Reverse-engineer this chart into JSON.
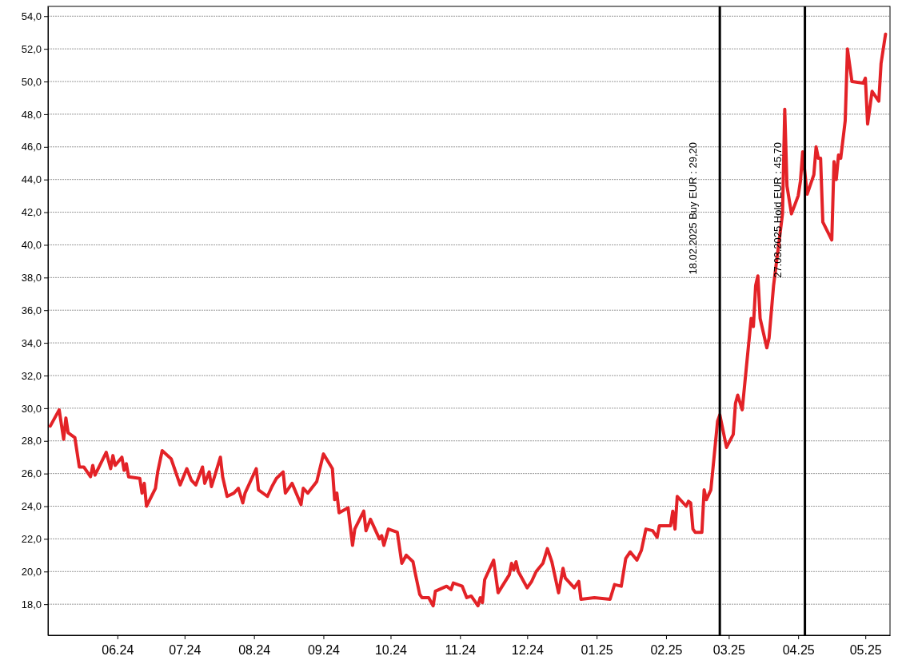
{
  "chart_data": {
    "type": "line",
    "x": [
      "2024-05-02",
      "2024-05-06",
      "2024-05-08",
      "2024-05-09",
      "2024-05-10",
      "2024-05-13",
      "2024-05-15",
      "2024-05-17",
      "2024-05-20",
      "2024-05-21",
      "2024-05-22",
      "2024-05-27",
      "2024-05-29",
      "2024-05-30",
      "2024-05-31",
      "2024-06-03",
      "2024-06-04",
      "2024-06-05",
      "2024-06-06",
      "2024-06-11",
      "2024-06-12",
      "2024-06-13",
      "2024-06-14",
      "2024-06-18",
      "2024-06-19",
      "2024-06-21",
      "2024-06-25",
      "2024-06-29",
      "2024-07-02",
      "2024-07-04",
      "2024-07-06",
      "2024-07-09",
      "2024-07-10",
      "2024-07-12",
      "2024-07-13",
      "2024-07-17",
      "2024-07-18",
      "2024-07-20",
      "2024-07-23",
      "2024-07-25",
      "2024-07-27",
      "2024-07-28",
      "2024-08-02",
      "2024-08-03",
      "2024-08-07",
      "2024-08-09",
      "2024-08-11",
      "2024-08-14",
      "2024-08-15",
      "2024-08-16",
      "2024-08-18",
      "2024-08-22",
      "2024-08-23",
      "2024-08-25",
      "2024-08-29",
      "2024-09-01",
      "2024-09-05",
      "2024-09-06",
      "2024-09-07",
      "2024-09-08",
      "2024-09-12",
      "2024-09-14",
      "2024-09-15",
      "2024-09-19",
      "2024-09-20",
      "2024-09-22",
      "2024-09-26",
      "2024-09-27",
      "2024-09-28",
      "2024-09-30",
      "2024-10-04",
      "2024-10-06",
      "2024-10-08",
      "2024-10-11",
      "2024-10-12",
      "2024-10-14",
      "2024-10-15",
      "2024-10-18",
      "2024-10-20",
      "2024-10-21",
      "2024-10-26",
      "2024-10-28",
      "2024-10-29",
      "2024-11-02",
      "2024-11-04",
      "2024-11-06",
      "2024-11-09",
      "2024-11-10",
      "2024-11-11",
      "2024-11-12",
      "2024-11-16",
      "2024-11-18",
      "2024-11-23",
      "2024-11-24",
      "2024-11-25",
      "2024-11-26",
      "2024-11-27",
      "2024-12-01",
      "2024-12-03",
      "2024-12-05",
      "2024-12-08",
      "2024-12-10",
      "2024-12-12",
      "2024-12-15",
      "2024-12-17",
      "2024-12-18",
      "2024-12-22",
      "2024-12-24",
      "2024-12-25",
      "2024-12-31",
      "2025-01-07",
      "2025-01-09",
      "2025-01-12",
      "2025-01-14",
      "2025-01-16",
      "2025-01-19",
      "2025-01-21",
      "2025-01-23",
      "2025-01-26",
      "2025-01-28",
      "2025-01-29",
      "2025-02-03",
      "2025-02-04",
      "2025-02-05",
      "2025-02-06",
      "2025-02-10",
      "2025-02-11",
      "2025-02-12",
      "2025-02-13",
      "2025-02-14",
      "2025-02-17",
      "2025-02-18",
      "2025-02-19",
      "2025-02-21",
      "2025-02-24",
      "2025-02-25",
      "2025-02-28",
      "2025-03-03",
      "2025-03-04",
      "2025-03-05",
      "2025-03-07",
      "2025-03-11",
      "2025-03-12",
      "2025-03-13",
      "2025-03-14",
      "2025-03-15",
      "2025-03-18",
      "2025-03-19",
      "2025-03-21",
      "2025-03-25",
      "2025-03-26",
      "2025-03-27",
      "2025-03-29",
      "2025-04-01",
      "2025-04-02",
      "2025-04-03",
      "2025-04-05",
      "2025-04-08",
      "2025-04-09",
      "2025-04-10",
      "2025-04-11",
      "2025-04-12",
      "2025-04-16",
      "2025-04-17",
      "2025-04-18",
      "2025-04-19",
      "2025-04-20",
      "2025-04-22",
      "2025-04-23",
      "2025-04-25",
      "2025-04-30",
      "2025-05-01",
      "2025-05-02",
      "2025-05-04",
      "2025-05-07",
      "2025-05-08",
      "2025-05-10"
    ],
    "series": [
      {
        "color": "#e32227",
        "values": [
          28.9,
          29.9,
          28.1,
          29.4,
          28.5,
          28.2,
          26.4,
          26.4,
          25.8,
          26.5,
          25.9,
          27.3,
          26.3,
          27.1,
          26.5,
          27.0,
          26.2,
          26.6,
          25.8,
          25.7,
          24.8,
          25.4,
          24.0,
          25.1,
          26.1,
          27.4,
          26.9,
          25.3,
          26.3,
          25.6,
          25.3,
          26.4,
          25.4,
          26.1,
          25.2,
          27.0,
          25.8,
          24.6,
          24.8,
          25.1,
          24.2,
          24.8,
          26.3,
          25.0,
          24.6,
          25.2,
          25.7,
          26.1,
          24.8,
          25.0,
          25.4,
          24.1,
          25.1,
          24.8,
          25.5,
          27.2,
          26.3,
          24.4,
          24.8,
          23.6,
          23.9,
          21.6,
          22.6,
          23.7,
          22.5,
          23.2,
          22.0,
          22.2,
          21.6,
          22.6,
          22.4,
          20.5,
          21.0,
          20.6,
          19.9,
          18.6,
          18.4,
          18.4,
          17.9,
          18.8,
          19.1,
          18.9,
          19.3,
          19.1,
          18.4,
          18.5,
          17.9,
          18.4,
          18.1,
          19.5,
          20.7,
          18.7,
          19.8,
          20.5,
          20.1,
          20.6,
          20.0,
          19.0,
          19.4,
          20.0,
          20.5,
          21.4,
          20.6,
          18.7,
          20.2,
          19.6,
          19.0,
          19.4,
          18.3,
          18.4,
          18.3,
          19.2,
          19.1,
          20.8,
          21.2,
          20.7,
          21.3,
          22.6,
          22.5,
          22.1,
          22.8,
          22.8,
          23.7,
          22.6,
          24.6,
          24.0,
          24.3,
          24.2,
          22.6,
          22.4,
          22.4,
          25.0,
          24.4,
          25.0,
          29.2,
          29.6,
          27.6,
          28.4,
          30.3,
          30.8,
          29.9,
          35.5,
          35.0,
          37.5,
          38.1,
          35.5,
          33.7,
          34.3,
          37.5,
          41.9,
          48.3,
          43.6,
          41.9,
          43.0,
          43.9,
          45.7,
          43.1,
          44.3,
          46.0,
          45.3,
          45.3,
          41.4,
          40.3,
          45.1,
          44.0,
          45.5,
          45.3,
          47.6,
          52.0,
          50.0,
          49.9,
          50.2,
          47.4,
          49.4,
          48.8,
          51.1,
          52.9
        ]
      }
    ],
    "xlim": [
      "2024-05-01",
      "2025-05-12"
    ],
    "xticks": [
      {
        "value": "2024-06-01",
        "label": "06.24"
      },
      {
        "value": "2024-07-01",
        "label": "07.24"
      },
      {
        "value": "2024-08-01",
        "label": "08.24"
      },
      {
        "value": "2024-09-01",
        "label": "09.24"
      },
      {
        "value": "2024-10-01",
        "label": "10.24"
      },
      {
        "value": "2024-11-01",
        "label": "11.24"
      },
      {
        "value": "2024-12-01",
        "label": "12.24"
      },
      {
        "value": "2025-01-01",
        "label": "01.25"
      },
      {
        "value": "2025-02-01",
        "label": "02.25"
      },
      {
        "value": "2025-03-01",
        "label": "03.25"
      },
      {
        "value": "2025-04-01",
        "label": "04.25"
      },
      {
        "value": "2025-05-01",
        "label": "05.25"
      }
    ],
    "ylim": [
      16.1,
      54.6
    ],
    "yticks": [
      {
        "value": 18,
        "label": "18,0"
      },
      {
        "value": 20,
        "label": "20,0"
      },
      {
        "value": 22,
        "label": "22,0"
      },
      {
        "value": 24,
        "label": "24,0"
      },
      {
        "value": 26,
        "label": "26,0"
      },
      {
        "value": 28,
        "label": "28,0"
      },
      {
        "value": 30,
        "label": "30,0"
      },
      {
        "value": 32,
        "label": "32,0"
      },
      {
        "value": 34,
        "label": "34,0"
      },
      {
        "value": 36,
        "label": "36,0"
      },
      {
        "value": 38,
        "label": "38,0"
      },
      {
        "value": 40,
        "label": "40,0"
      },
      {
        "value": 42,
        "label": "42,0"
      },
      {
        "value": 44,
        "label": "44,0"
      },
      {
        "value": 46,
        "label": "46,0"
      },
      {
        "value": 48,
        "label": "48,0"
      },
      {
        "value": 50,
        "label": "50,0"
      },
      {
        "value": 52,
        "label": "52,0"
      },
      {
        "value": 54,
        "label": "54,0"
      }
    ],
    "grid": "y",
    "ref_lines": [
      {
        "axis": "x",
        "value": "2025-02-25",
        "label": "18.02.2025 Buy EUR : 29,20",
        "color": "#000000"
      },
      {
        "axis": "x",
        "value": "2025-04-04",
        "label": "27.03.2025 Hold EUR : 45,70",
        "color": "#000000"
      }
    ],
    "line_style": "solid"
  }
}
